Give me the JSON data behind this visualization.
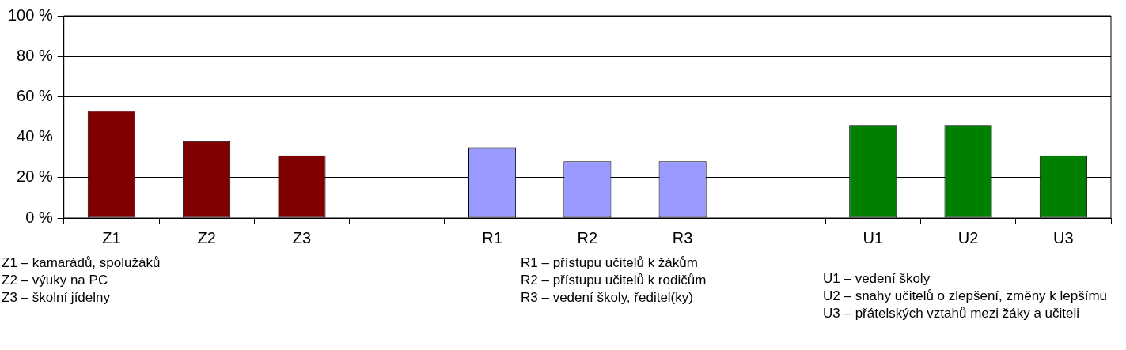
{
  "chart_data": {
    "type": "bar",
    "categories": [
      "Z1",
      "Z2",
      "Z3",
      null,
      "R1",
      "R2",
      "R3",
      null,
      "U1",
      "U2",
      "U3"
    ],
    "values": [
      53,
      38,
      31,
      null,
      35,
      28,
      28,
      null,
      46,
      46,
      31
    ],
    "colors": [
      "#800000",
      "#800000",
      "#800000",
      "#ffffff",
      "#9999ff",
      "#9999ff",
      "#9999ff",
      "#ffffff",
      "#008000",
      "#008000",
      "#008000"
    ],
    "ylim": [
      0,
      100
    ],
    "yticks": [
      {
        "value": 0,
        "label": "0 %"
      },
      {
        "value": 20,
        "label": "20 %"
      },
      {
        "value": 40,
        "label": "40 %"
      },
      {
        "value": 60,
        "label": "60 %"
      },
      {
        "value": 80,
        "label": "80 %"
      },
      {
        "value": 100,
        "label": "100 %"
      }
    ],
    "grid": "y",
    "legend": false,
    "annotations": [
      "Z1 – kamarádů, spolužáků",
      "Z2 – výuky na PC",
      "Z3 – školní jídelny",
      "R1 – přístupu učitelů k žákům",
      "R2 – přístupu učitelů k rodičům",
      "R3 – vedení školy, ředitel(ky)",
      "U1 – vedení školy",
      "U2 – snahy učitelů o zlepšení, změny k lepšímu",
      "U3 – přátelských vztahů mezi žáky a učiteli"
    ]
  }
}
